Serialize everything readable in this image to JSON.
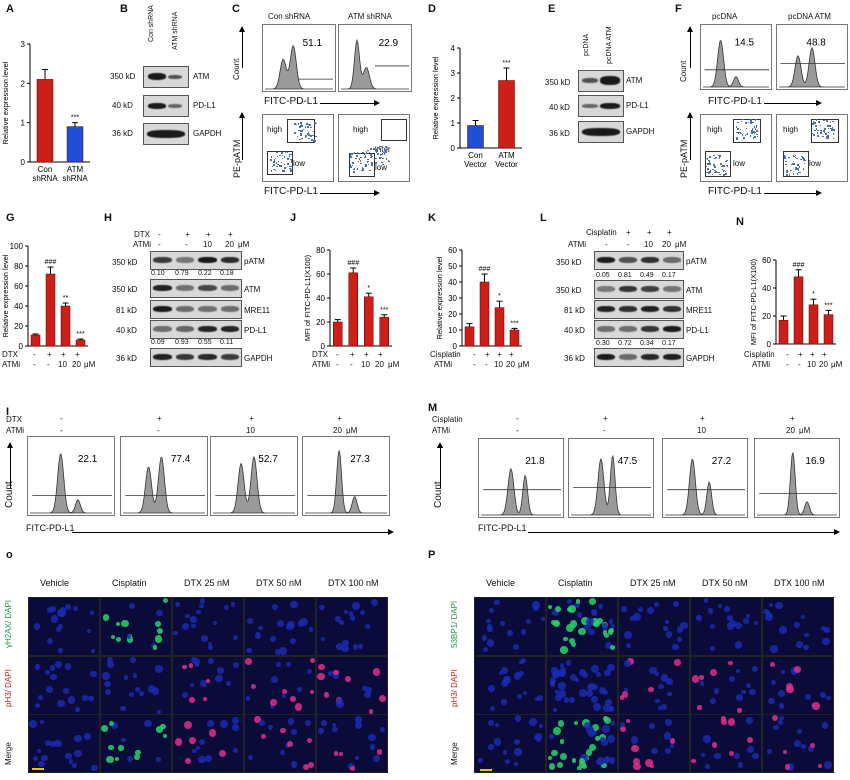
{
  "panel_letters": [
    "A",
    "B",
    "C",
    "D",
    "E",
    "F",
    "G",
    "H",
    "J",
    "K",
    "L",
    "N",
    "I",
    "M",
    "o",
    "P"
  ],
  "common": {
    "rel_expr": "Relative expression level",
    "mfi": "MFI of FITC-PD-L1(X100)",
    "count": "Count",
    "fitc": "FITC-PD-L1",
    "pe_patm": "PE-pATM",
    "um": "μM",
    "kd350": "350 kD",
    "kd40": "40 kD",
    "kd36": "36 kD",
    "kd81": "81 kD",
    "ATM": "ATM",
    "PDL1": "PD-L1",
    "GAPDH": "GAPDH",
    "pATM": "pATM",
    "MRE11": "MRE11",
    "high": "high",
    "low": "low",
    "inter": "inter",
    "DTX": "DTX",
    "ATMi": "ATMi",
    "Cisplatin": "Cisplatin",
    "plus": "+",
    "minus": "-",
    "ten": "10",
    "twenty": "20",
    "sig3": "***",
    "sig2": "**",
    "sig1": "*",
    "hash3": "###"
  },
  "panelA": {
    "cats": [
      "Con shRNA",
      "ATM shRNA"
    ],
    "cat1a": "Con",
    "cat1b": "shRNA",
    "cat2a": "ATM",
    "cat2b": "shRNA"
  },
  "panelB": {
    "lanes": [
      "Con shRNA",
      "ATM shRNA"
    ]
  },
  "panelC": {
    "titles": [
      "Con shRNA",
      "ATM shRNA"
    ],
    "pcts": [
      "51.1",
      "22.9"
    ]
  },
  "panelD": {
    "cat1a": "Con",
    "cat1b": "Vector",
    "cat2a": "ATM",
    "cat2b": "Vector"
  },
  "panelE": {
    "lanes": [
      "pcDNA",
      "pcDNA ATM"
    ]
  },
  "panelF": {
    "titles": [
      "pcDNA",
      "pcDNA ATM"
    ],
    "pcts": [
      "14.5",
      "48.8"
    ]
  },
  "panelH": {
    "quant_patm": [
      "0.10",
      "0.79",
      "0.22",
      "0.18"
    ],
    "quant_pdl1": [
      "0.09",
      "0.93",
      "0.55",
      "0.11"
    ]
  },
  "panelL": {
    "quant_patm": [
      "0.05",
      "0.81",
      "0.49",
      "0.17"
    ],
    "quant_pdl1": [
      "0.30",
      "0.72",
      "0.34",
      "0.17"
    ]
  },
  "panelI": {
    "pcts": [
      "22.1",
      "77.4",
      "52.7",
      "27.3"
    ]
  },
  "panelM": {
    "pcts": [
      "21.8",
      "47.5",
      "27.2",
      "16.9"
    ]
  },
  "micro": {
    "cols": [
      "Vehicle",
      "Cisplatin",
      "DTX 25 nM",
      "DTX 50 nM",
      "DTX 100 nM"
    ],
    "o_rows": [
      "γH2AX/ DAPI",
      "pH3/ DAPI",
      "Merge"
    ],
    "p_rows": [
      "53BP1/ DAPI",
      "pH3/ DAPI",
      "Merge"
    ]
  },
  "colors": {
    "red": "#cc1f1a",
    "blue": "#1f4fd6",
    "dapi": "#1a2bb0",
    "green": "#27d46a",
    "magenta": "#e0308a"
  },
  "chart_data": [
    {
      "id": "A",
      "type": "bar",
      "categories": [
        "Con shRNA",
        "ATM shRNA"
      ],
      "values": [
        2.1,
        0.9
      ],
      "errors": [
        0.25,
        0.1
      ],
      "colors": [
        "#cc1f1a",
        "#1f4fd6"
      ],
      "ylabel": "Relative expression level",
      "ylim": [
        0,
        3
      ],
      "yticks": [
        0,
        1,
        2,
        3
      ],
      "annotations": [
        "",
        "***"
      ]
    },
    {
      "id": "D",
      "type": "bar",
      "categories": [
        "Con Vector",
        "ATM Vector"
      ],
      "values": [
        0.9,
        2.7
      ],
      "errors": [
        0.2,
        0.5
      ],
      "colors": [
        "#1f4fd6",
        "#cc1f1a"
      ],
      "ylabel": "Relative expression level",
      "ylim": [
        0,
        4
      ],
      "yticks": [
        0,
        1,
        2,
        3,
        4
      ],
      "annotations": [
        "",
        "***"
      ]
    },
    {
      "id": "G",
      "type": "bar",
      "categories": [
        "1",
        "2",
        "3",
        "4"
      ],
      "values": [
        11,
        72,
        40,
        6
      ],
      "errors": [
        1,
        7,
        3,
        1
      ],
      "ylabel": "Relative expression level",
      "ylim": [
        0,
        100
      ],
      "yticks": [
        0,
        20,
        40,
        60,
        80,
        100
      ],
      "annotations": [
        "",
        "###",
        "**",
        "***"
      ]
    },
    {
      "id": "J",
      "type": "bar",
      "categories": [
        "1",
        "2",
        "3",
        "4"
      ],
      "values": [
        20,
        61,
        41,
        24
      ],
      "errors": [
        2,
        4,
        3,
        2
      ],
      "ylabel": "MFI of FITC-PD-L1(X100)",
      "ylim": [
        0,
        80
      ],
      "yticks": [
        0,
        20,
        40,
        60,
        80
      ],
      "annotations": [
        "",
        "###",
        "*",
        "***"
      ]
    },
    {
      "id": "K",
      "type": "bar",
      "categories": [
        "1",
        "2",
        "3",
        "4"
      ],
      "values": [
        12,
        40,
        24,
        10
      ],
      "errors": [
        2,
        5,
        4,
        1
      ],
      "ylabel": "Relative expression level",
      "ylim": [
        0,
        60
      ],
      "yticks": [
        0,
        10,
        20,
        30,
        40,
        50,
        60
      ],
      "annotations": [
        "",
        "###",
        "*",
        "***"
      ]
    },
    {
      "id": "N",
      "type": "bar",
      "categories": [
        "1",
        "2",
        "3",
        "4"
      ],
      "values": [
        17,
        48,
        28,
        21
      ],
      "errors": [
        3,
        5,
        4,
        3
      ],
      "ylabel": "MFI of FITC-PD-L1(X100)",
      "ylim": [
        0,
        60
      ],
      "yticks": [
        0,
        20,
        40,
        60
      ],
      "annotations": [
        "",
        "###",
        "*",
        "***"
      ]
    }
  ]
}
